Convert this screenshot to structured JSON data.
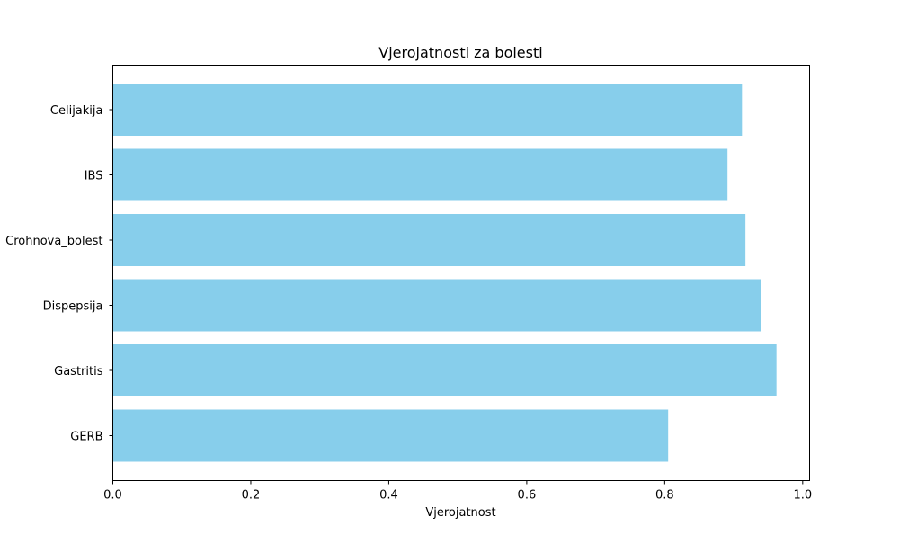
{
  "chart_data": {
    "type": "bar",
    "orientation": "horizontal",
    "title": "Vjerojatnosti za bolesti",
    "xlabel": "Vjerojatnost",
    "ylabel": "",
    "categories": [
      "Celijakija",
      "IBS",
      "Crohnova_bolest",
      "Dispepsija",
      "Gastritis",
      "GERB"
    ],
    "values": [
      0.912,
      0.891,
      0.917,
      0.94,
      0.962,
      0.805
    ],
    "xlim": [
      0.0,
      1.01
    ],
    "xticks": [
      0.0,
      0.2,
      0.4,
      0.6,
      0.8,
      1.0
    ],
    "xtick_labels": [
      "0.0",
      "0.2",
      "0.4",
      "0.6",
      "0.8",
      "1.0"
    ],
    "bar_color": "#87CEEB",
    "grid": false,
    "legend": "none"
  }
}
